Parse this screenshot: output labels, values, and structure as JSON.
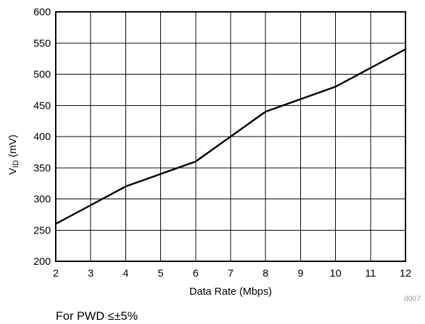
{
  "chart_data": {
    "type": "line",
    "title": "",
    "xlabel": "Data Rate (Mbps)",
    "ylabel": {
      "main": "V",
      "subscript": "ID",
      "unit": " (mV)"
    },
    "xlim": [
      2,
      12
    ],
    "ylim": [
      200,
      600
    ],
    "xticks": [
      2,
      3,
      4,
      5,
      6,
      7,
      8,
      9,
      10,
      11,
      12
    ],
    "yticks": [
      200,
      250,
      300,
      350,
      400,
      450,
      500,
      550,
      600
    ],
    "grid": true,
    "series": [
      {
        "x": [
          2,
          3,
          4,
          5,
          6,
          7,
          8,
          9,
          10,
          11,
          12
        ],
        "y": [
          260,
          290,
          320,
          340,
          360,
          400,
          440,
          460,
          480,
          510,
          540
        ]
      }
    ],
    "colors": {
      "line": "#000000",
      "grid": "#000000",
      "figure_id": "#999999"
    }
  },
  "figure_id": "d007",
  "caption": "For PWD ≤±5%"
}
